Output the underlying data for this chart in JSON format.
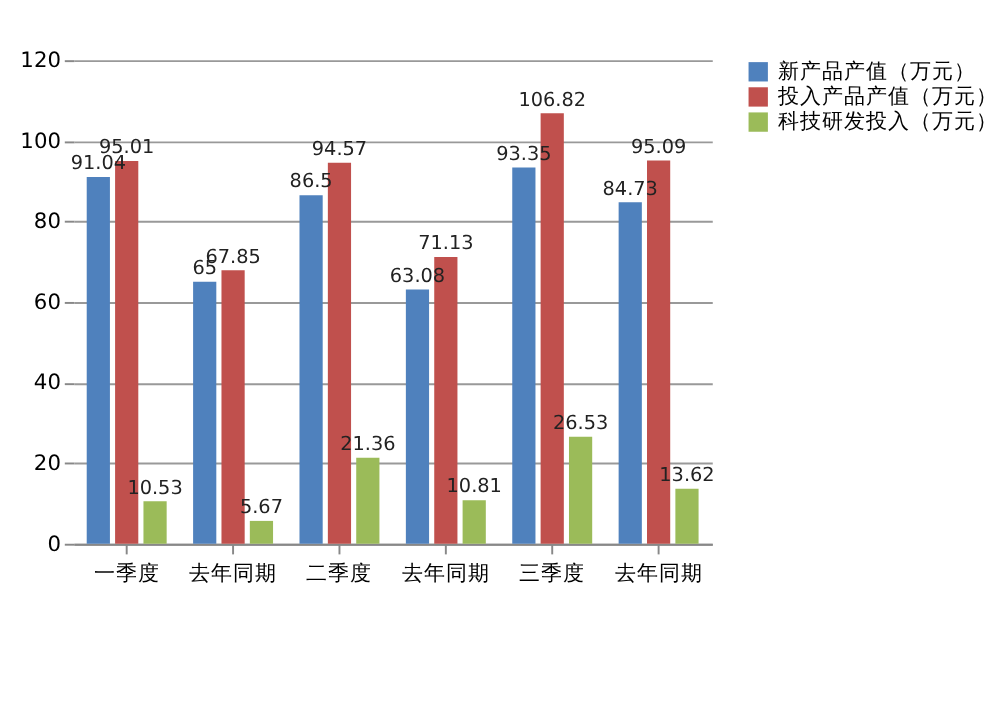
{
  "chart_data": {
    "type": "bar",
    "categories": [
      "一季度",
      "去年同期",
      "二季度",
      "去年同期",
      "三季度",
      "去年同期"
    ],
    "series": [
      {
        "name": "新产品产值（万元）",
        "color": "#4f81bd",
        "values": [
          91.04,
          65,
          86.5,
          63.08,
          93.35,
          84.73
        ]
      },
      {
        "name": "投入产品产值（万元）",
        "color": "#c0504d",
        "values": [
          95.01,
          67.85,
          94.57,
          71.13,
          106.82,
          95.09
        ]
      },
      {
        "name": "科技研发投入（万元）",
        "color": "#9bbb59",
        "values": [
          10.53,
          5.67,
          21.36,
          10.81,
          26.53,
          13.62
        ]
      }
    ],
    "ylim": [
      0,
      120
    ],
    "yticks": [
      0,
      20,
      40,
      60,
      80,
      100,
      120
    ],
    "grid": "y",
    "legend": "right",
    "data_labels": true
  }
}
